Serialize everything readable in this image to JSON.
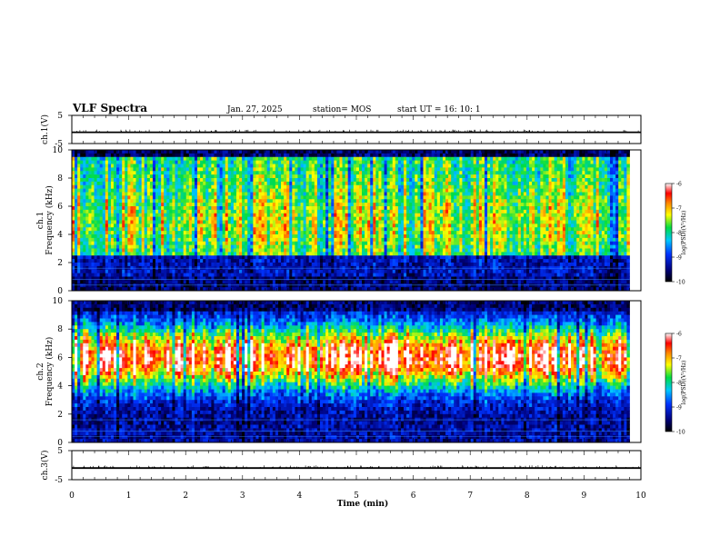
{
  "header": {
    "title": "VLF Spectra",
    "date": "Jan. 27, 2025",
    "station": "station= MOS",
    "start": "start  UT  =   16: 10: 1"
  },
  "chart_data": [
    {
      "type": "line",
      "panel": "ch1-voltage",
      "ylabel": "ch.1(V)",
      "ylim": [
        -5,
        5
      ],
      "yticks": [
        "5",
        "-5"
      ],
      "x": [
        0,
        10
      ],
      "values": [
        -1.0,
        -1.0
      ],
      "color": "#000000"
    },
    {
      "type": "heatmap",
      "panel": "ch1-spectrogram",
      "ylabel": "ch.1\nFrequency (kHz)",
      "ylim": [
        0,
        10
      ],
      "yticks": [
        "0",
        "2",
        "4",
        "6",
        "8",
        "10"
      ],
      "xlim": [
        0,
        9.8
      ],
      "colorbar": {
        "label": "log(PSD)(V²/Hz)",
        "range": [
          -10,
          -6
        ],
        "ticks": [
          "-6",
          "-7",
          "-8",
          "-9",
          "-10"
        ]
      }
    },
    {
      "type": "heatmap",
      "panel": "ch2-spectrogram",
      "ylabel": "ch.2\nFrequency (kHz)",
      "ylim": [
        0,
        10
      ],
      "yticks": [
        "0",
        "2",
        "4",
        "6",
        "8",
        "10"
      ],
      "xlim": [
        0,
        9.8
      ],
      "colorbar": {
        "label": "log(PSD)(V²/Hz)",
        "range": [
          -10,
          -6
        ],
        "ticks": [
          "-6",
          "-7",
          "-8",
          "-9",
          "-10"
        ]
      }
    },
    {
      "type": "line",
      "panel": "ch3-voltage",
      "ylabel": "ch.3(V)",
      "ylim": [
        -5,
        5
      ],
      "yticks": [
        "5",
        "-5"
      ],
      "x": [
        0,
        10
      ],
      "values": [
        -1.0,
        -1.0
      ],
      "color": "#000000"
    }
  ],
  "xaxis": {
    "label": "Time  (min)",
    "ticks": [
      "0",
      "1",
      "2",
      "3",
      "4",
      "5",
      "6",
      "7",
      "8",
      "9",
      "10"
    ],
    "xlim": [
      0,
      10
    ]
  }
}
